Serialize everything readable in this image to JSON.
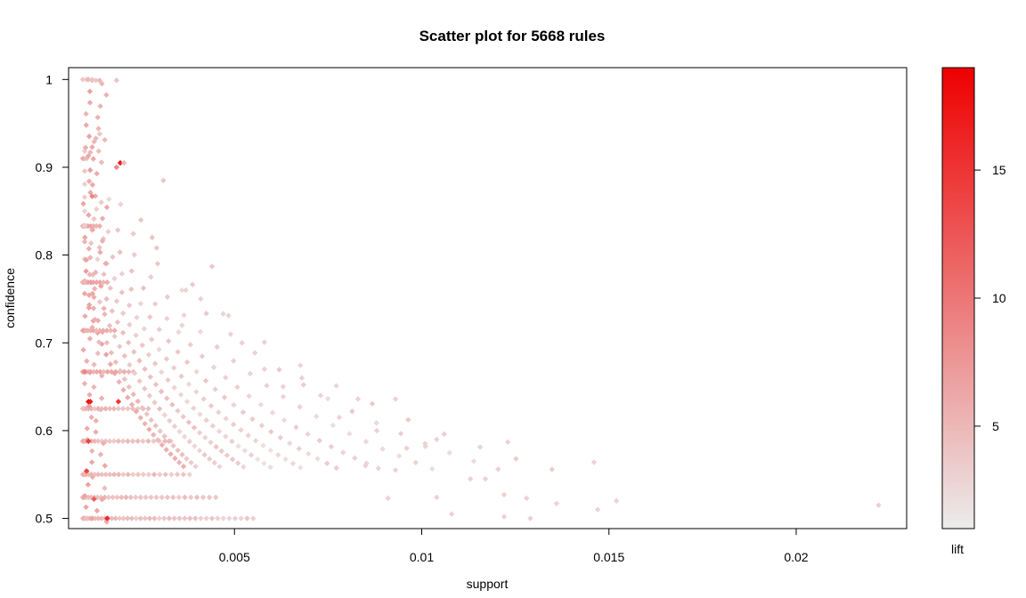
{
  "chart_data": {
    "type": "scatter",
    "title": "Scatter plot for 5668 rules",
    "xlabel": "support",
    "ylabel": "confidence",
    "colorbar_label": "lift",
    "xlim": [
      0.00057,
      0.02295
    ],
    "ylim": [
      0.4884,
      1.0135
    ],
    "xticks": [
      0.005,
      0.01,
      0.015,
      0.02
    ],
    "xtick_labels": [
      "0.005",
      "0.01",
      "0.015",
      "0.02"
    ],
    "yticks": [
      0.5,
      0.6,
      0.7,
      0.8,
      0.9,
      1.0
    ],
    "ytick_labels": [
      "0.5",
      "0.6",
      "0.7",
      "0.8",
      "0.9",
      "1"
    ],
    "lift_range": [
      1.0,
      19.0
    ],
    "colorbar_ticks": [
      5,
      10,
      15
    ],
    "colorbar_tick_labels": [
      "5",
      "10",
      "15"
    ],
    "color_low": "#ececec",
    "color_high": "#ee0000",
    "grid": false,
    "legend": "colorbar-right",
    "points": [
      {
        "x": 0.00095,
        "y": 1.0,
        "lift": 4
      },
      {
        "x": 0.00105,
        "y": 1.0,
        "lift": 4
      },
      {
        "x": 0.0011,
        "y": 1.0,
        "lift": 5
      },
      {
        "x": 0.0012,
        "y": 1.0,
        "lift": 4
      },
      {
        "x": 0.0013,
        "y": 0.999,
        "lift": 4
      },
      {
        "x": 0.0014,
        "y": 0.999,
        "lift": 5
      },
      {
        "x": 0.00185,
        "y": 0.999,
        "lift": 4
      },
      {
        "x": 0.00095,
        "y": 0.91,
        "lift": 6
      },
      {
        "x": 0.00105,
        "y": 0.91,
        "lift": 5
      },
      {
        "x": 0.0011,
        "y": 0.913,
        "lift": 6
      },
      {
        "x": 0.00115,
        "y": 0.917,
        "lift": 5
      },
      {
        "x": 0.0012,
        "y": 0.923,
        "lift": 6
      },
      {
        "x": 0.00125,
        "y": 0.929,
        "lift": 5
      },
      {
        "x": 0.0013,
        "y": 0.933,
        "lift": 5
      },
      {
        "x": 0.0014,
        "y": 0.938,
        "lift": 4
      },
      {
        "x": 0.00195,
        "y": 0.905,
        "lift": 17
      },
      {
        "x": 0.00185,
        "y": 0.9,
        "lift": 9
      },
      {
        "x": 0.00205,
        "y": 0.905,
        "lift": 5
      },
      {
        "x": 0.0031,
        "y": 0.885,
        "lift": 4
      },
      {
        "x": 0.0025,
        "y": 0.84,
        "lift": 4
      },
      {
        "x": 0.0028,
        "y": 0.82,
        "lift": 4
      },
      {
        "x": 0.0044,
        "y": 0.787,
        "lift": 4
      },
      {
        "x": 0.0037,
        "y": 0.76,
        "lift": 3
      },
      {
        "x": 0.0041,
        "y": 0.75,
        "lift": 3
      },
      {
        "x": 0.0047,
        "y": 0.733,
        "lift": 3
      },
      {
        "x": 0.0036,
        "y": 0.72,
        "lift": 3
      },
      {
        "x": 0.0052,
        "y": 0.7,
        "lift": 3
      },
      {
        "x": 0.0058,
        "y": 0.67,
        "lift": 3
      },
      {
        "x": 0.0063,
        "y": 0.65,
        "lift": 3
      },
      {
        "x": 0.0068,
        "y": 0.66,
        "lift": 3
      },
      {
        "x": 0.0073,
        "y": 0.64,
        "lift": 3
      },
      {
        "x": 0.0083,
        "y": 0.636,
        "lift": 3
      },
      {
        "x": 0.0093,
        "y": 0.636,
        "lift": 3
      },
      {
        "x": 0.0078,
        "y": 0.615,
        "lift": 3
      },
      {
        "x": 0.0088,
        "y": 0.6,
        "lift": 3
      },
      {
        "x": 0.0096,
        "y": 0.58,
        "lift": 3
      },
      {
        "x": 0.0101,
        "y": 0.582,
        "lift": 3
      },
      {
        "x": 0.0104,
        "y": 0.59,
        "lift": 3
      },
      {
        "x": 0.0113,
        "y": 0.545,
        "lift": 3
      },
      {
        "x": 0.0117,
        "y": 0.545,
        "lift": 3
      },
      {
        "x": 0.0123,
        "y": 0.587,
        "lift": 3
      },
      {
        "x": 0.0122,
        "y": 0.527,
        "lift": 3
      },
      {
        "x": 0.0128,
        "y": 0.523,
        "lift": 3
      },
      {
        "x": 0.0136,
        "y": 0.517,
        "lift": 3
      },
      {
        "x": 0.0146,
        "y": 0.564,
        "lift": 3
      },
      {
        "x": 0.0147,
        "y": 0.51,
        "lift": 3
      },
      {
        "x": 0.0152,
        "y": 0.52,
        "lift": 3
      },
      {
        "x": 0.0104,
        "y": 0.524,
        "lift": 3
      },
      {
        "x": 0.0108,
        "y": 0.505,
        "lift": 3
      },
      {
        "x": 0.0122,
        "y": 0.502,
        "lift": 3
      },
      {
        "x": 0.0129,
        "y": 0.5,
        "lift": 3
      },
      {
        "x": 0.0093,
        "y": 0.555,
        "lift": 3
      },
      {
        "x": 0.0091,
        "y": 0.523,
        "lift": 3
      },
      {
        "x": 0.0085,
        "y": 0.56,
        "lift": 3
      },
      {
        "x": 0.0222,
        "y": 0.515,
        "lift": 3
      },
      {
        "x": 0.0011,
        "y": 0.633,
        "lift": 18
      },
      {
        "x": 0.00115,
        "y": 0.633,
        "lift": 17
      },
      {
        "x": 0.0019,
        "y": 0.633,
        "lift": 15
      },
      {
        "x": 0.0011,
        "y": 0.588,
        "lift": 14
      },
      {
        "x": 0.00105,
        "y": 0.554,
        "lift": 14
      },
      {
        "x": 0.0016,
        "y": 0.5,
        "lift": 16
      },
      {
        "x": 0.00125,
        "y": 0.522,
        "lift": 12
      },
      {
        "x": 0.001,
        "y": 0.667,
        "lift": 9
      },
      {
        "x": 0.0012,
        "y": 0.867,
        "lift": 9
      }
    ],
    "arcs": [
      {
        "a": 0.5,
        "b": 0.00265,
        "n": 24,
        "lift": 6,
        "dl": 0.8
      },
      {
        "a": 0.5,
        "b": 0.00285,
        "n": 26,
        "lift": 5,
        "dl": 0.8
      },
      {
        "a": 0.5,
        "b": 0.00325,
        "n": 28,
        "lift": 4,
        "dl": 0.7
      },
      {
        "a": 0.5,
        "b": 0.00365,
        "n": 30,
        "lift": 4,
        "dl": 0.6
      },
      {
        "a": 0.5,
        "b": 0.0041,
        "n": 30,
        "lift": 3,
        "dl": 0.5
      },
      {
        "a": 0.5,
        "b": 0.0046,
        "n": 30,
        "lift": 3,
        "dl": 0.5
      },
      {
        "a": 0.5,
        "b": 0.0052,
        "n": 28,
        "lift": 3,
        "dl": 0.4
      },
      {
        "a": 0.5,
        "b": 0.0059,
        "n": 26,
        "lift": 3,
        "dl": 0.4
      },
      {
        "a": 0.5,
        "b": 0.0068,
        "n": 22,
        "lift": 2.5,
        "dl": 0.3
      },
      {
        "a": 0.5,
        "b": 0.0079,
        "n": 18,
        "lift": 2.5,
        "dl": 0.3
      },
      {
        "a": 0.5,
        "b": 0.0088,
        "n": 14,
        "lift": 2.5,
        "dl": 0.3
      }
    ],
    "bands": [
      {
        "y": 0.5,
        "x1": 0.00095,
        "x2": 0.0055,
        "n": 40,
        "lift": 5
      },
      {
        "y": 0.524,
        "x1": 0.00095,
        "x2": 0.0045,
        "n": 30,
        "lift": 5
      },
      {
        "y": 0.55,
        "x1": 0.00095,
        "x2": 0.0038,
        "n": 25,
        "lift": 5
      },
      {
        "y": 0.588,
        "x1": 0.00095,
        "x2": 0.0033,
        "n": 22,
        "lift": 5
      },
      {
        "y": 0.625,
        "x1": 0.00095,
        "x2": 0.0027,
        "n": 18,
        "lift": 5
      },
      {
        "y": 0.667,
        "x1": 0.00095,
        "x2": 0.0023,
        "n": 16,
        "lift": 6
      },
      {
        "y": 0.714,
        "x1": 0.00095,
        "x2": 0.0018,
        "n": 12,
        "lift": 6
      },
      {
        "y": 0.769,
        "x1": 0.00095,
        "x2": 0.0016,
        "n": 10,
        "lift": 6
      },
      {
        "y": 0.833,
        "x1": 0.00095,
        "x2": 0.0014,
        "n": 8,
        "lift": 6
      }
    ]
  }
}
